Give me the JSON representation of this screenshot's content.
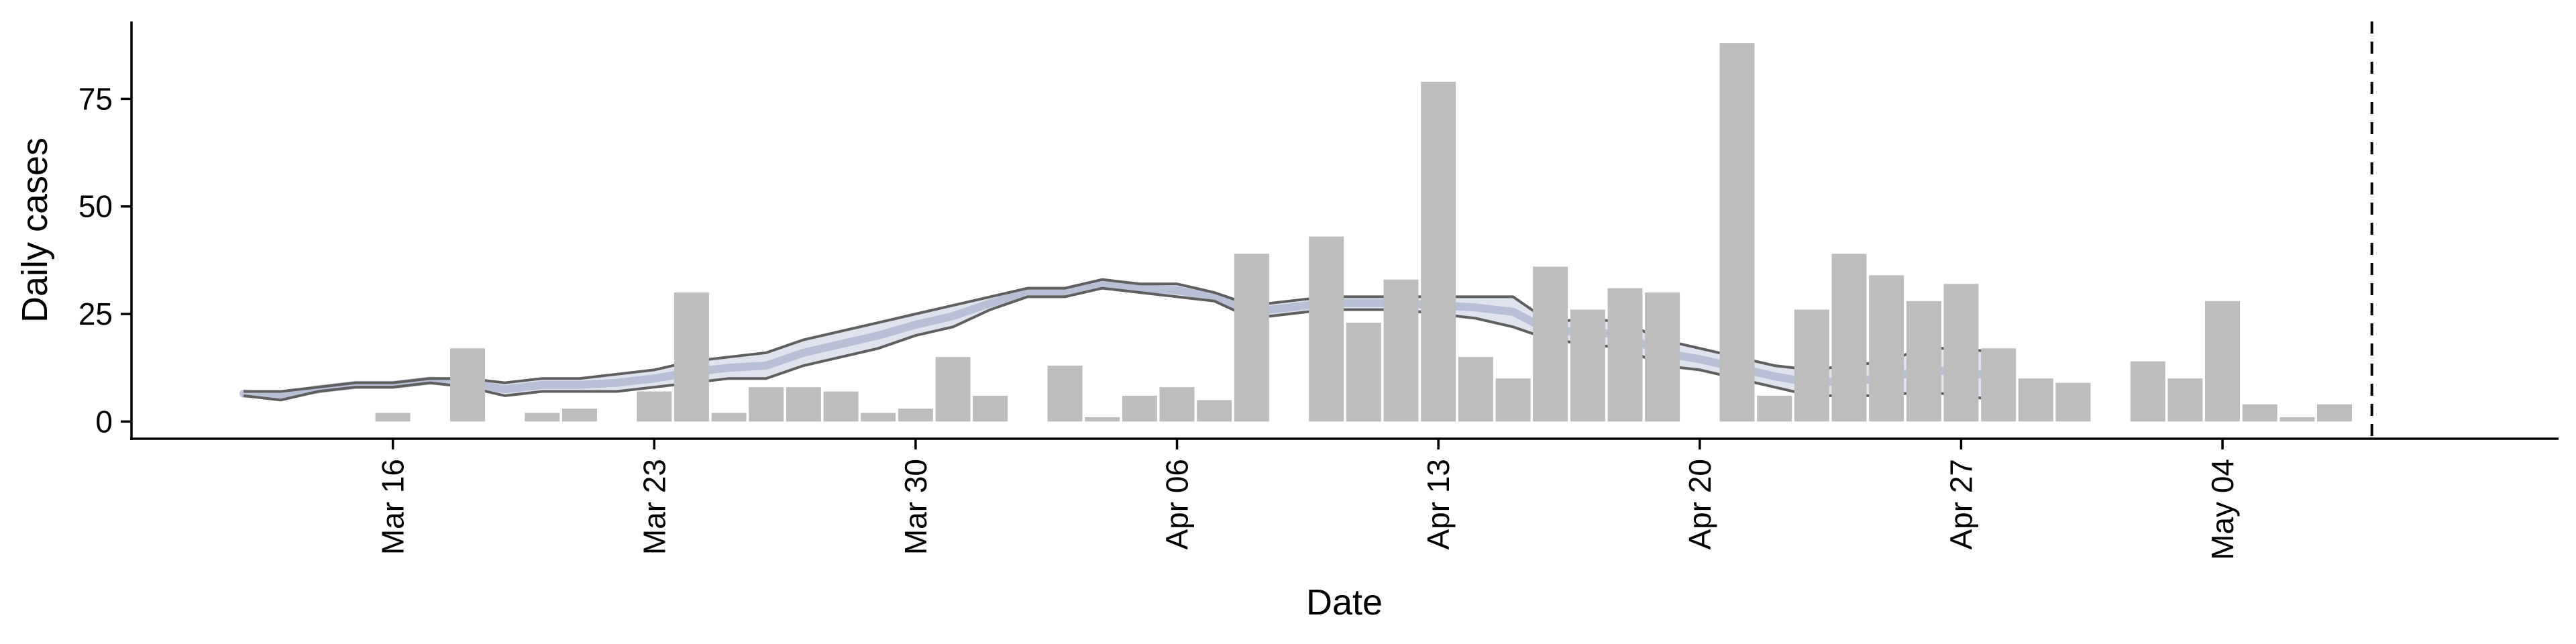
{
  "chart_data": {
    "type": "bar",
    "title": "",
    "xlabel": "Date",
    "ylabel": "Daily cases",
    "ylim": [
      -4,
      93
    ],
    "yticks": [
      0,
      25,
      50,
      75
    ],
    "x_axis_type": "date",
    "xlim": [
      "2020-03-09",
      "2020-05-13"
    ],
    "xtick_dates": [
      "2020-03-16",
      "2020-03-23",
      "2020-03-30",
      "2020-04-06",
      "2020-04-13",
      "2020-04-20",
      "2020-04-27",
      "2020-05-04"
    ],
    "xtick_labels": [
      "Mar 16",
      "Mar 23",
      "Mar 30",
      "Apr 06",
      "Apr 13",
      "Apr 20",
      "Apr 27",
      "May 04"
    ],
    "grid": false,
    "legend": "none",
    "colors": {
      "bar": "#bdbdbd",
      "band_outer_fill": "#d4d9e8",
      "band_inner_fill": "#aeb6d0",
      "band_edge": "#5f5f5f",
      "reference_line": "#000000"
    },
    "bars": {
      "name": "Daily cases",
      "x": [
        "2020-03-16",
        "2020-03-18",
        "2020-03-20",
        "2020-03-21",
        "2020-03-23",
        "2020-03-24",
        "2020-03-25",
        "2020-03-26",
        "2020-03-27",
        "2020-03-28",
        "2020-03-29",
        "2020-03-30",
        "2020-03-31",
        "2020-04-01",
        "2020-04-03",
        "2020-04-04",
        "2020-04-05",
        "2020-04-06",
        "2020-04-07",
        "2020-04-08",
        "2020-04-10",
        "2020-04-11",
        "2020-04-12",
        "2020-04-13",
        "2020-04-14",
        "2020-04-15",
        "2020-04-16",
        "2020-04-17",
        "2020-04-18",
        "2020-04-19",
        "2020-04-21",
        "2020-04-22",
        "2020-04-23",
        "2020-04-24",
        "2020-04-25",
        "2020-04-26",
        "2020-04-27",
        "2020-04-28",
        "2020-04-29",
        "2020-04-30",
        "2020-05-02",
        "2020-05-03",
        "2020-05-04",
        "2020-05-05",
        "2020-05-06",
        "2020-05-07"
      ],
      "values": [
        2,
        17,
        2,
        3,
        7,
        30,
        2,
        8,
        8,
        7,
        2,
        3,
        15,
        6,
        13,
        1,
        6,
        8,
        5,
        39,
        43,
        23,
        33,
        79,
        15,
        10,
        36,
        26,
        31,
        30,
        88,
        6,
        26,
        39,
        34,
        28,
        32,
        17,
        10,
        9,
        14,
        10,
        28,
        4,
        1,
        4
      ]
    },
    "estimate_band": {
      "x": [
        "2020-03-12",
        "2020-03-13",
        "2020-03-14",
        "2020-03-15",
        "2020-03-16",
        "2020-03-17",
        "2020-03-18",
        "2020-03-19",
        "2020-03-20",
        "2020-03-21",
        "2020-03-22",
        "2020-03-23",
        "2020-03-24",
        "2020-03-25",
        "2020-03-26",
        "2020-03-27",
        "2020-03-28",
        "2020-03-29",
        "2020-03-30",
        "2020-03-31",
        "2020-04-01",
        "2020-04-02",
        "2020-04-03",
        "2020-04-04",
        "2020-04-05",
        "2020-04-06",
        "2020-04-07",
        "2020-04-08",
        "2020-04-09",
        "2020-04-10",
        "2020-04-11",
        "2020-04-12",
        "2020-04-13",
        "2020-04-14",
        "2020-04-15",
        "2020-04-16",
        "2020-04-17",
        "2020-04-18",
        "2020-04-19",
        "2020-04-20",
        "2020-04-21",
        "2020-04-22",
        "2020-04-23",
        "2020-04-24",
        "2020-04-25",
        "2020-04-26",
        "2020-04-27",
        "2020-04-28"
      ],
      "lower": [
        6,
        5,
        7,
        8,
        8,
        9,
        8,
        6,
        7,
        7,
        7,
        8,
        9,
        10,
        10,
        13,
        15,
        17,
        20,
        22,
        26,
        29,
        29,
        31,
        30,
        29,
        28,
        24,
        25,
        26,
        26,
        26,
        25,
        24,
        22,
        19,
        18,
        17,
        13,
        12,
        10,
        8,
        6,
        6,
        6,
        7,
        6,
        5
      ],
      "upper": [
        7,
        7,
        8,
        9,
        9,
        10,
        10,
        9,
        10,
        10,
        11,
        12,
        14,
        15,
        16,
        19,
        21,
        23,
        25,
        27,
        29,
        31,
        31,
        33,
        32,
        32,
        30,
        27,
        28,
        29,
        29,
        29,
        29,
        29,
        29,
        23,
        24,
        23,
        19,
        17,
        15,
        13,
        12,
        13,
        14,
        17,
        17,
        16
      ],
      "inner_lower": [
        6.5,
        6,
        7.5,
        8.5,
        8.5,
        9.5,
        9,
        7.5,
        8.5,
        8.5,
        9,
        10,
        11.5,
        12.5,
        13,
        16,
        18,
        20,
        22.5,
        24.5,
        27.5,
        30,
        30,
        32,
        31,
        30.5,
        29,
        25.5,
        26.5,
        27.5,
        27.5,
        27.5,
        27,
        26.5,
        25.5,
        21,
        21,
        20,
        16,
        14.5,
        12.5,
        10.5,
        9,
        9.5,
        10,
        12,
        11.5,
        10.5
      ],
      "inner_upper": [
        6.5,
        6,
        7.5,
        8.5,
        8.5,
        9.5,
        9,
        7.5,
        8.5,
        8.5,
        9,
        10,
        11.5,
        12.5,
        13,
        16,
        18,
        20,
        22.5,
        24.5,
        27.5,
        30,
        30,
        32,
        31,
        30.5,
        29,
        25.5,
        26.5,
        27.5,
        27.5,
        27.5,
        27,
        26.5,
        25.5,
        21,
        21,
        20,
        16,
        14.5,
        12.5,
        10.5,
        9,
        9.5,
        10,
        12,
        11.5,
        10.5
      ]
    },
    "reference_line_x": "2020-05-08"
  }
}
